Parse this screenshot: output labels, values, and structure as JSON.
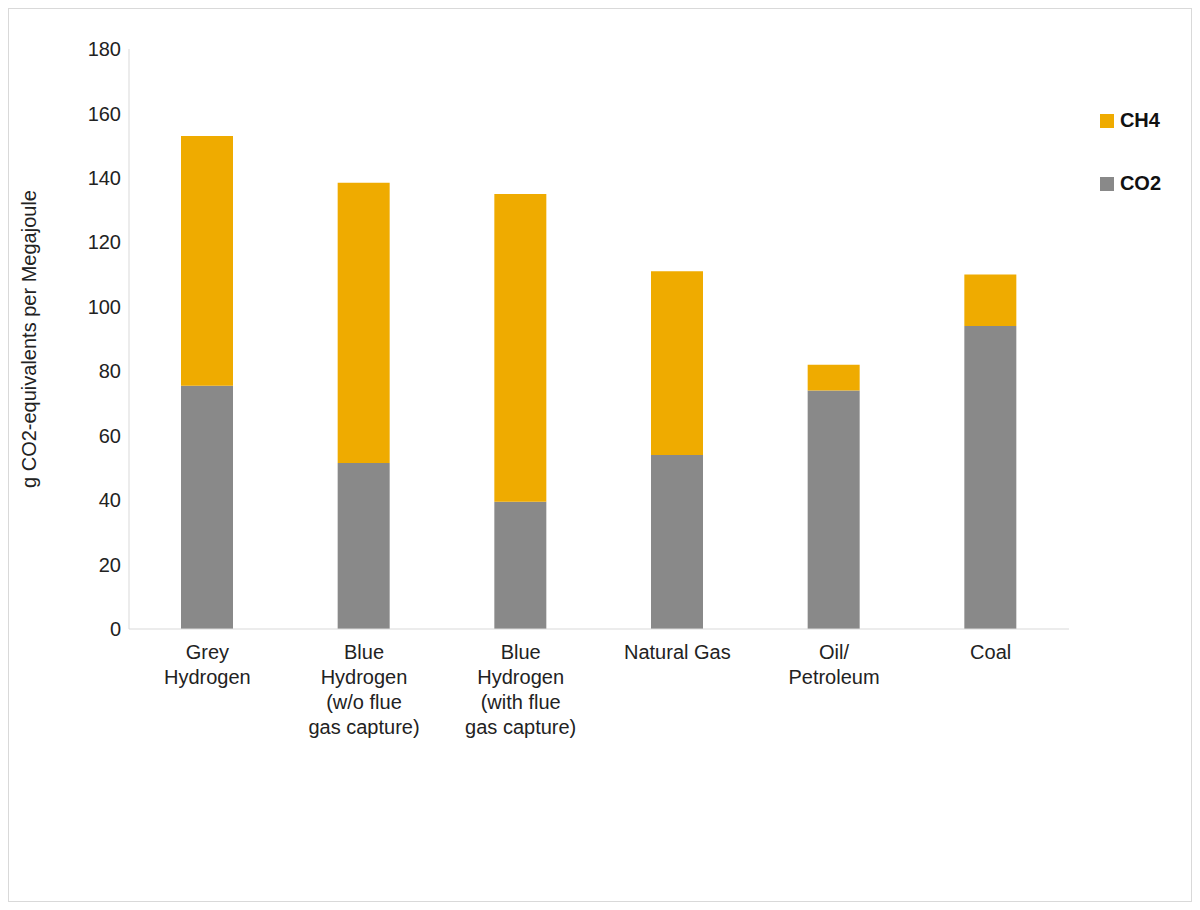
{
  "chart_data": {
    "type": "bar",
    "stacked": true,
    "y_label": "g CO2-equivalents per Megajoule",
    "categories": [
      "Grey Hydrogen",
      "Blue Hydrogen (w/o flue gas capture)",
      "Blue Hydrogen (with flue gas capture)",
      "Natural Gas",
      "Oil/ Petroleum",
      "Coal"
    ],
    "series": [
      {
        "name": "CO2",
        "color": "#898989",
        "values": [
          75.5,
          51.5,
          39.5,
          54,
          74,
          94
        ]
      },
      {
        "name": "CH4",
        "color": "#efab00",
        "values": [
          77.5,
          87,
          95.5,
          57,
          8,
          16
        ]
      }
    ],
    "ylim": [
      0,
      180
    ],
    "yticks": [
      0,
      20,
      40,
      60,
      80,
      100,
      120,
      140,
      160,
      180
    ],
    "grid": false,
    "legend": "upper right"
  }
}
